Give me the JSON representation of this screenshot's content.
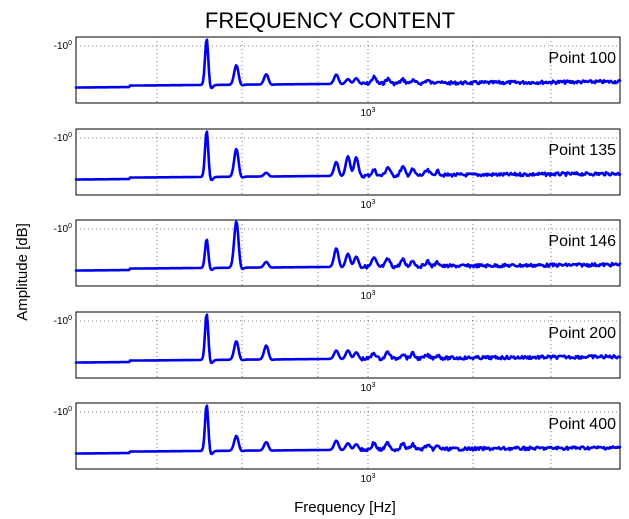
{
  "chart_data": {
    "type": "line",
    "title": "FREQUENCY  CONTENT",
    "xlabel": "Frequency [Hz]",
    "ylabel": "Amplitude [dB]",
    "x_scale": "log",
    "x_tick_label": "10",
    "x_tick_exponent": "3",
    "y_tick_label": "-10",
    "y_tick_exponent": "0",
    "grid": true,
    "line_color": "#0000ee",
    "x_peak_hz": [
      260,
      310,
      370,
      560,
      600,
      630,
      700,
      760,
      830,
      880,
      960,
      1020
    ],
    "panels": [
      {
        "name": "Point 100",
        "peak_heights": [
          1.0,
          0.42,
          0.22,
          0.2,
          0.1,
          0.12,
          0.14,
          0.1,
          0.08,
          0.06,
          0.06,
          0.05
        ]
      },
      {
        "name": "Point 135",
        "peak_heights": [
          1.0,
          0.6,
          0.08,
          0.3,
          0.42,
          0.4,
          0.12,
          0.18,
          0.18,
          0.12,
          0.1,
          0.08
        ]
      },
      {
        "name": "Point 146",
        "peak_heights": [
          0.62,
          1.0,
          0.12,
          0.4,
          0.28,
          0.22,
          0.18,
          0.16,
          0.14,
          0.12,
          0.1,
          0.08
        ]
      },
      {
        "name": "Point 200",
        "peak_heights": [
          1.0,
          0.4,
          0.3,
          0.18,
          0.18,
          0.14,
          0.12,
          0.14,
          0.1,
          0.1,
          0.06,
          0.06
        ]
      },
      {
        "name": "Point 400",
        "peak_heights": [
          1.0,
          0.32,
          0.18,
          0.2,
          0.14,
          0.12,
          0.14,
          0.14,
          0.12,
          0.1,
          0.08,
          0.06
        ]
      }
    ]
  }
}
